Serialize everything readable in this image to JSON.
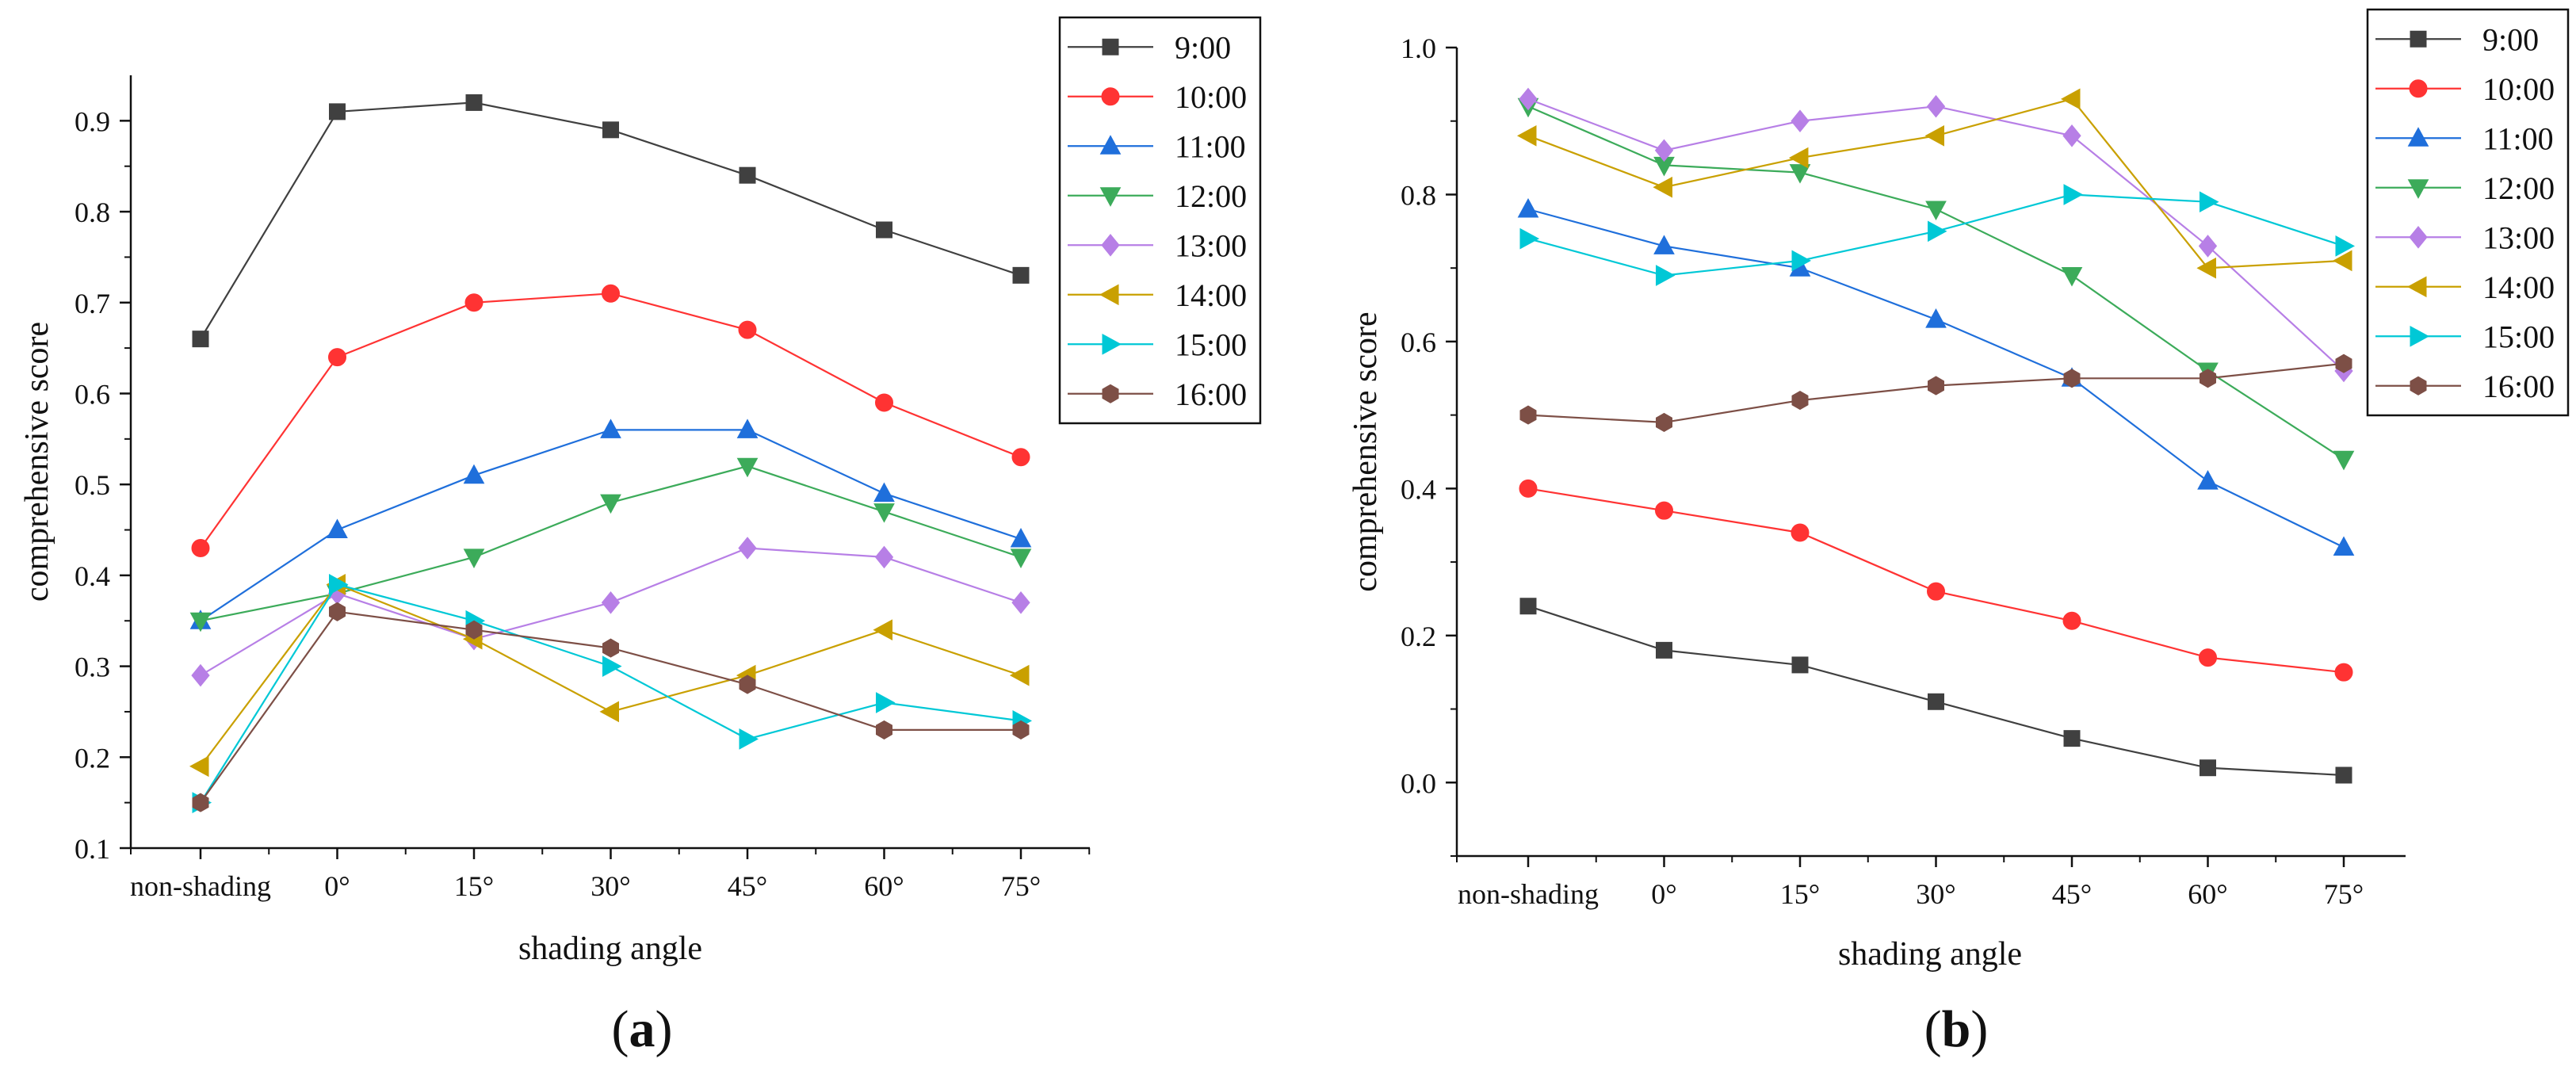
{
  "chart_data": [
    {
      "type": "line",
      "panel_label": "(a)",
      "panel_letter": "a",
      "xlabel": "shading angle",
      "ylabel": "comprehensive score",
      "categories": [
        "non-shading",
        "0°",
        "15°",
        "30°",
        "45°",
        "60°",
        "75°"
      ],
      "ylim": [
        0.1,
        0.95
      ],
      "yticks": [
        0.1,
        0.2,
        0.3,
        0.4,
        0.5,
        0.6,
        0.7,
        0.8,
        0.9
      ],
      "ytick_labels": [
        "0.1",
        "0.2",
        "0.3",
        "0.4",
        "0.5",
        "0.6",
        "0.7",
        "0.8",
        "0.9"
      ],
      "grid": false,
      "legend_position": "top-right",
      "series": [
        {
          "name": "9:00",
          "color": "#404040",
          "marker": "square",
          "values": [
            0.66,
            0.91,
            0.92,
            0.89,
            0.84,
            0.78,
            0.73
          ]
        },
        {
          "name": "10:00",
          "color": "#ff3333",
          "marker": "circle",
          "values": [
            0.43,
            0.64,
            0.7,
            0.71,
            0.67,
            0.59,
            0.53
          ]
        },
        {
          "name": "11:00",
          "color": "#1f6fdb",
          "marker": "triangle-up",
          "values": [
            0.35,
            0.45,
            0.51,
            0.56,
            0.56,
            0.49,
            0.44
          ]
        },
        {
          "name": "12:00",
          "color": "#3cab5a",
          "marker": "triangle-down",
          "values": [
            0.35,
            0.38,
            0.42,
            0.48,
            0.52,
            0.47,
            0.42
          ]
        },
        {
          "name": "13:00",
          "color": "#b77fe6",
          "marker": "diamond",
          "values": [
            0.29,
            0.38,
            0.33,
            0.37,
            0.43,
            0.42,
            0.37
          ]
        },
        {
          "name": "14:00",
          "color": "#c9a000",
          "marker": "triangle-left",
          "values": [
            0.19,
            0.39,
            0.33,
            0.25,
            0.29,
            0.34,
            0.29
          ]
        },
        {
          "name": "15:00",
          "color": "#00c8d6",
          "marker": "triangle-right",
          "values": [
            0.15,
            0.39,
            0.35,
            0.3,
            0.22,
            0.26,
            0.24
          ]
        },
        {
          "name": "16:00",
          "color": "#7d4f46",
          "marker": "hexagon",
          "values": [
            0.15,
            0.36,
            0.34,
            0.32,
            0.28,
            0.23,
            0.23
          ]
        }
      ]
    },
    {
      "type": "line",
      "panel_label": "(b)",
      "panel_letter": "b",
      "xlabel": "shading angle",
      "ylabel": "comprehensive score",
      "categories": [
        "non-shading",
        "0°",
        "15°",
        "30°",
        "45°",
        "60°",
        "75°"
      ],
      "ylim": [
        -0.1,
        1.0
      ],
      "yticks": [
        0.0,
        0.2,
        0.4,
        0.6,
        0.8,
        1.0
      ],
      "ytick_labels": [
        "0.0",
        "0.2",
        "0.4",
        "0.6",
        "0.8",
        "1.0"
      ],
      "grid": false,
      "legend_position": "top-right",
      "series": [
        {
          "name": "9:00",
          "color": "#404040",
          "marker": "square",
          "values": [
            0.24,
            0.18,
            0.16,
            0.11,
            0.06,
            0.02,
            0.01
          ]
        },
        {
          "name": "10:00",
          "color": "#ff3333",
          "marker": "circle",
          "values": [
            0.4,
            0.37,
            0.34,
            0.26,
            0.22,
            0.17,
            0.15
          ]
        },
        {
          "name": "11:00",
          "color": "#1f6fdb",
          "marker": "triangle-up",
          "values": [
            0.78,
            0.73,
            0.7,
            0.63,
            0.55,
            0.41,
            0.32
          ]
        },
        {
          "name": "12:00",
          "color": "#3cab5a",
          "marker": "triangle-down",
          "values": [
            0.92,
            0.84,
            0.83,
            0.78,
            0.69,
            0.56,
            0.44
          ]
        },
        {
          "name": "13:00",
          "color": "#b77fe6",
          "marker": "diamond",
          "values": [
            0.93,
            0.86,
            0.9,
            0.92,
            0.88,
            0.73,
            0.56
          ]
        },
        {
          "name": "14:00",
          "color": "#c9a000",
          "marker": "triangle-left",
          "values": [
            0.88,
            0.81,
            0.85,
            0.88,
            0.93,
            0.7,
            0.71
          ]
        },
        {
          "name": "15:00",
          "color": "#00c8d6",
          "marker": "triangle-right",
          "values": [
            0.74,
            0.69,
            0.71,
            0.75,
            0.8,
            0.79,
            0.73
          ]
        },
        {
          "name": "16:00",
          "color": "#7d4f46",
          "marker": "hexagon",
          "values": [
            0.5,
            0.49,
            0.52,
            0.54,
            0.55,
            0.55,
            0.57
          ]
        }
      ]
    }
  ]
}
